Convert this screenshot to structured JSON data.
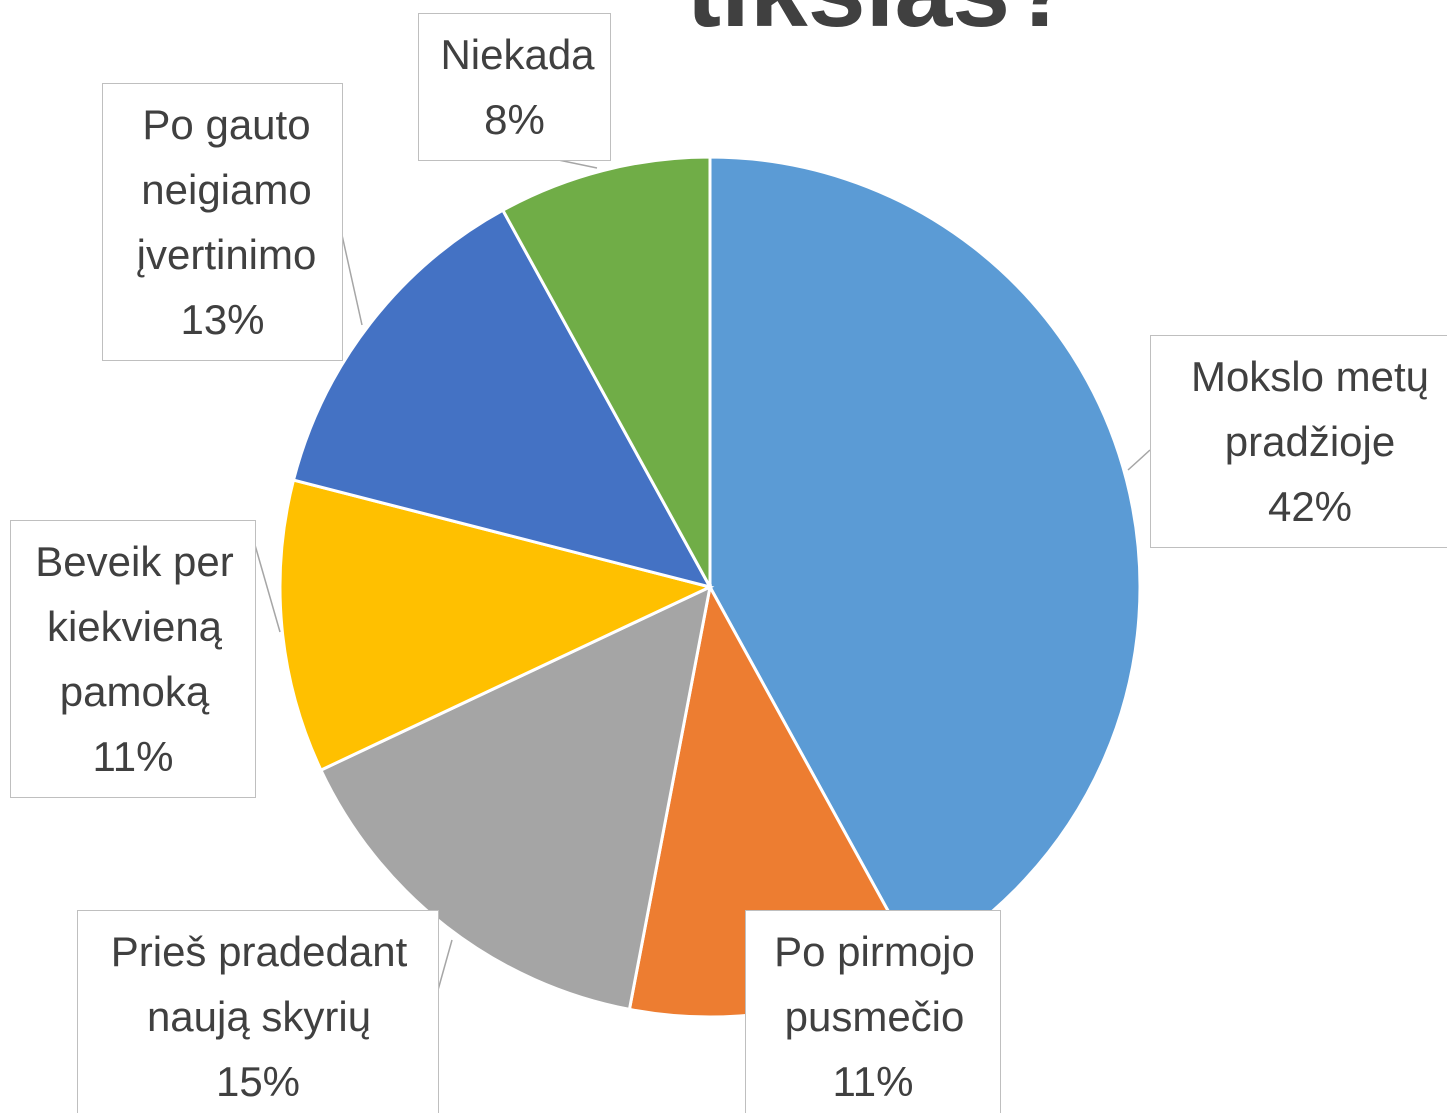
{
  "chart_data": {
    "type": "pie",
    "title": "tikslas?",
    "categories": [
      "Mokslo metų pradžioje",
      "Po pirmojo pusmečio",
      "Prieš pradedant naują skyrių",
      "Beveik per kiekvieną pamoką",
      "Po gauto neigiamo įvertinimo",
      "Niekada"
    ],
    "values": [
      42,
      11,
      15,
      11,
      13,
      8
    ],
    "value_labels": [
      "42%",
      "11%",
      "15%",
      "11%",
      "13%",
      "8%"
    ],
    "colors": [
      "#5b9bd5",
      "#ed7d31",
      "#a5a5a5",
      "#ffc000",
      "#4472c4",
      "#70ad47"
    ]
  }
}
